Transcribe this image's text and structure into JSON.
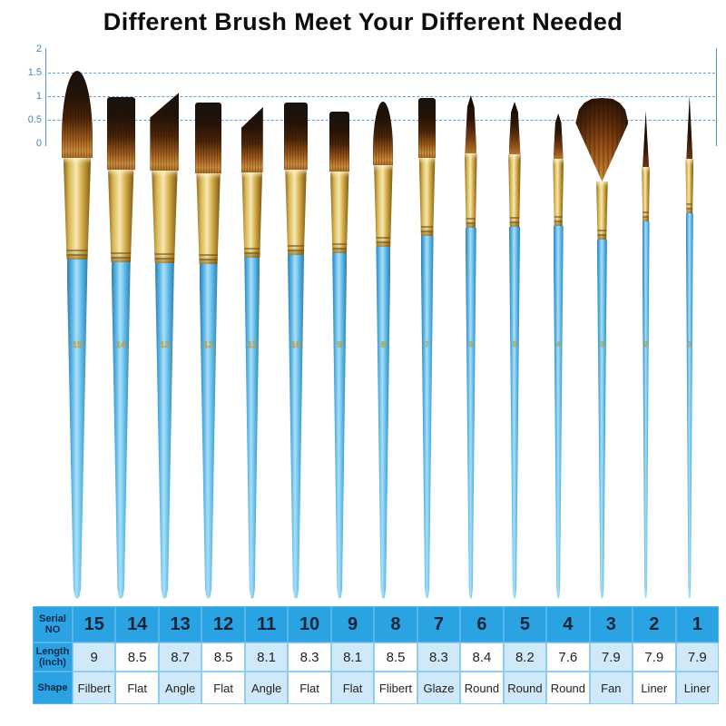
{
  "title": "Different Brush Meet Your Different Needed",
  "ruler": {
    "tick_labels": [
      "2",
      "1.5",
      "1",
      "0.5",
      "0"
    ],
    "axis_color": "#4a90d8"
  },
  "brushes": [
    {
      "serial": "15",
      "length_inch": "9",
      "shape": "Filbert"
    },
    {
      "serial": "14",
      "length_inch": "8.5",
      "shape": "Flat"
    },
    {
      "serial": "13",
      "length_inch": "8.7",
      "shape": "Angle"
    },
    {
      "serial": "12",
      "length_inch": "8.5",
      "shape": "Flat"
    },
    {
      "serial": "11",
      "length_inch": "8.1",
      "shape": "Angle"
    },
    {
      "serial": "10",
      "length_inch": "8.3",
      "shape": "Flat"
    },
    {
      "serial": "9",
      "length_inch": "8.1",
      "shape": "Flat"
    },
    {
      "serial": "8",
      "length_inch": "8.5",
      "shape": "Flibert"
    },
    {
      "serial": "7",
      "length_inch": "8.3",
      "shape": "Glaze"
    },
    {
      "serial": "6",
      "length_inch": "8.4",
      "shape": "Round"
    },
    {
      "serial": "5",
      "length_inch": "8.2",
      "shape": "Round"
    },
    {
      "serial": "4",
      "length_inch": "7.6",
      "shape": "Round"
    },
    {
      "serial": "3",
      "length_inch": "7.9",
      "shape": "Fan"
    },
    {
      "serial": "2",
      "length_inch": "7.9",
      "shape": "Liner"
    },
    {
      "serial": "1",
      "length_inch": "7.9",
      "shape": "Liner"
    }
  ],
  "table": {
    "row_headers": [
      {
        "line1": "Serial",
        "line2": "NO"
      },
      {
        "line1": "Length",
        "line2": "(inch)"
      },
      {
        "line1": "Shape",
        "line2": ""
      }
    ]
  },
  "colors": {
    "handle_blue": "#58b2e2",
    "ferrule_gold": "#d9b656",
    "bristle_dark": "#241307",
    "bristle_brown": "#b5742c",
    "table_header_blue": "#2ba2e2",
    "table_stripe_blue": "#cfe9f8",
    "axis_blue": "#4a90d8",
    "handle_number_gold": "#c9a43e"
  }
}
